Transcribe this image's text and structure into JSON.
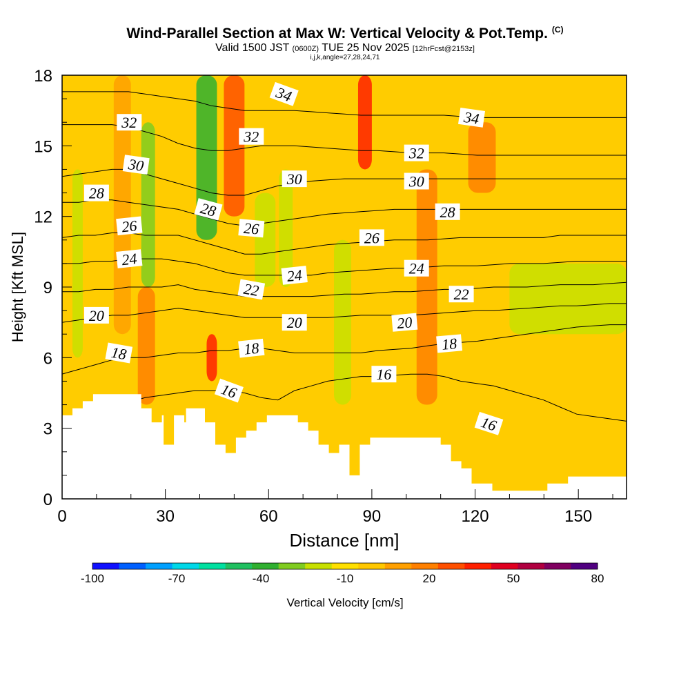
{
  "header": {
    "title": "Wind-Parallel Section at Max W: Vertical Velocity & Pot.Temp.",
    "copyright": "(C)",
    "valid_prefix": "Valid 1500 JST",
    "utc": "(0600Z)",
    "valid_date": "TUE 25 Nov 2025",
    "forecast": "[12hrFcst@2153z]",
    "indices": "i,j,k,angle=27,28,24,71"
  },
  "chart_data": {
    "type": "contour-section",
    "title": "Wind-Parallel Section at Max W: Vertical Velocity & Pot.Temp.",
    "xlabel": "Distance [nm]",
    "ylabel": "Height [Kft MSL]",
    "xlim": [
      0,
      164
    ],
    "ylim": [
      0,
      18
    ],
    "xticks": [
      "0",
      "30",
      "60",
      "90",
      "120",
      "150"
    ],
    "yticks": [
      "0",
      "3",
      "6",
      "9",
      "12",
      "15",
      "18"
    ],
    "terrain": [
      [
        0,
        3.55
      ],
      [
        3,
        3.55
      ],
      [
        3,
        3.85
      ],
      [
        6,
        3.85
      ],
      [
        6,
        4.15
      ],
      [
        9,
        4.15
      ],
      [
        9,
        4.45
      ],
      [
        12,
        4.45
      ],
      [
        12,
        4.45
      ],
      [
        18,
        4.45
      ],
      [
        18,
        4.45
      ],
      [
        23,
        4.45
      ],
      [
        23,
        3.85
      ],
      [
        26,
        3.85
      ],
      [
        26,
        3.25
      ],
      [
        29,
        3.25
      ],
      [
        29,
        3.55
      ],
      [
        29.5,
        3.55
      ],
      [
        29.5,
        2.3
      ],
      [
        32.5,
        2.3
      ],
      [
        32.5,
        3.55
      ],
      [
        35.5,
        3.55
      ],
      [
        35.5,
        3.25
      ],
      [
        36,
        3.25
      ],
      [
        36,
        3.85
      ],
      [
        41.5,
        3.85
      ],
      [
        41.5,
        3.25
      ],
      [
        44.5,
        3.25
      ],
      [
        44.5,
        2.3
      ],
      [
        47.5,
        2.3
      ],
      [
        47.5,
        1.95
      ],
      [
        50.5,
        1.95
      ],
      [
        50.5,
        2.6
      ],
      [
        53.5,
        2.6
      ],
      [
        53.5,
        2.9
      ],
      [
        56.5,
        2.9
      ],
      [
        56.5,
        3.25
      ],
      [
        59.5,
        3.25
      ],
      [
        59.5,
        3.55
      ],
      [
        68.5,
        3.55
      ],
      [
        68.5,
        3.25
      ],
      [
        71.5,
        3.25
      ],
      [
        71.5,
        2.9
      ],
      [
        74.5,
        2.9
      ],
      [
        74.5,
        2.3
      ],
      [
        77.5,
        2.3
      ],
      [
        77.5,
        1.95
      ],
      [
        83.5,
        1.95
      ],
      [
        83.5,
        1.6
      ],
      [
        80.5,
        1.6
      ],
      [
        80.5,
        2.3
      ],
      [
        83.5,
        2.3
      ],
      [
        83.5,
        1.0
      ],
      [
        86.5,
        1.0
      ],
      [
        86.5,
        2.3
      ],
      [
        89.5,
        2.3
      ],
      [
        89.5,
        2.6
      ],
      [
        110,
        2.6
      ],
      [
        110,
        2.3
      ],
      [
        113,
        2.3
      ],
      [
        113,
        1.6
      ],
      [
        116,
        1.6
      ],
      [
        116,
        1.3
      ],
      [
        119,
        1.3
      ],
      [
        119,
        0.65
      ],
      [
        125,
        0.65
      ],
      [
        125,
        0.35
      ],
      [
        141,
        0.35
      ],
      [
        141,
        0.65
      ],
      [
        147,
        0.65
      ],
      [
        147,
        0.95
      ],
      [
        164,
        0.95
      ]
    ],
    "contours": [
      {
        "label": "16",
        "level": 16,
        "heights": [
          3.3,
          3.5,
          3.8,
          4.0,
          4.1,
          4.3,
          4.4,
          4.5,
          4.6,
          4.6,
          4.6,
          4.5,
          4.3,
          4.2,
          4.6,
          4.8,
          5.0,
          5.1,
          5.2,
          5.2,
          5.25,
          5.3,
          5.3,
          5.2,
          5.0,
          4.9,
          4.8,
          4.6,
          4.4,
          4.2,
          3.9,
          3.6,
          3.5,
          3.4,
          3.3
        ]
      },
      {
        "label": "18",
        "level": 18,
        "heights": [
          5.3,
          5.5,
          5.7,
          5.9,
          6.0,
          6.0,
          6.1,
          6.2,
          6.2,
          6.3,
          6.3,
          6.4,
          6.4,
          6.3,
          6.2,
          6.2,
          6.2,
          6.2,
          6.2,
          6.3,
          6.35,
          6.4,
          6.5,
          6.6,
          6.65,
          6.7,
          6.8,
          6.9,
          7.0,
          7.1,
          7.2,
          7.3,
          7.35,
          7.4,
          7.4
        ]
      },
      {
        "label": "20",
        "level": 20,
        "heights": [
          7.5,
          7.6,
          7.7,
          7.8,
          7.8,
          7.9,
          8.0,
          8.1,
          8.0,
          7.9,
          7.8,
          7.7,
          7.7,
          7.7,
          7.7,
          7.7,
          7.7,
          7.75,
          7.8,
          7.8,
          7.8,
          7.8,
          7.85,
          7.9,
          7.95,
          8.0,
          8.0,
          8.05,
          8.1,
          8.15,
          8.2,
          8.2,
          8.25,
          8.3,
          8.3
        ]
      },
      {
        "label": "22",
        "level": 22,
        "heights": [
          8.8,
          8.8,
          8.9,
          8.9,
          9.0,
          9.0,
          9.0,
          9.1,
          8.9,
          8.8,
          8.7,
          8.6,
          8.6,
          8.6,
          8.6,
          8.6,
          8.65,
          8.7,
          8.7,
          8.75,
          8.8,
          8.8,
          8.85,
          8.9,
          8.9,
          8.95,
          9.0,
          9.0,
          9.0,
          9.05,
          9.1,
          9.1,
          9.1,
          9.15,
          9.2
        ]
      },
      {
        "label": "24",
        "level": 24,
        "heights": [
          10.0,
          10.0,
          10.1,
          10.1,
          10.2,
          10.2,
          10.2,
          10.1,
          10.0,
          9.8,
          9.6,
          9.5,
          9.5,
          9.5,
          9.5,
          9.5,
          9.6,
          9.65,
          9.7,
          9.75,
          9.8,
          9.8,
          9.85,
          9.9,
          9.9,
          9.9,
          9.95,
          10.0,
          10.0,
          10.0,
          10.05,
          10.1,
          10.1,
          10.1,
          10.1
        ]
      },
      {
        "label": "26",
        "level": 26,
        "heights": [
          11.1,
          11.2,
          11.2,
          11.3,
          11.3,
          11.2,
          11.2,
          11.2,
          11.0,
          10.8,
          10.6,
          10.4,
          10.4,
          10.5,
          10.6,
          10.7,
          10.8,
          10.85,
          10.9,
          10.95,
          11.0,
          11.0,
          11.0,
          11.05,
          11.1,
          11.1,
          11.1,
          11.1,
          11.1,
          11.1,
          11.2,
          11.2,
          11.2,
          11.2,
          11.2
        ]
      },
      {
        "label": "28",
        "level": 28,
        "heights": [
          12.6,
          12.6,
          12.7,
          12.7,
          12.6,
          12.5,
          12.4,
          12.3,
          12.1,
          11.9,
          11.7,
          11.6,
          11.7,
          11.8,
          11.9,
          12.0,
          12.1,
          12.15,
          12.2,
          12.25,
          12.3,
          12.3,
          12.3,
          12.3,
          12.3,
          12.3,
          12.3,
          12.3,
          12.3,
          12.3,
          12.3,
          12.3,
          12.3,
          12.3,
          12.3
        ]
      },
      {
        "label": "30",
        "level": 30,
        "heights": [
          13.7,
          13.8,
          13.9,
          14.0,
          14.0,
          13.8,
          13.6,
          13.4,
          13.2,
          13.0,
          12.9,
          12.9,
          13.1,
          13.3,
          13.4,
          13.5,
          13.55,
          13.6,
          13.6,
          13.6,
          13.6,
          13.6,
          13.6,
          13.6,
          13.6,
          13.6,
          13.6,
          13.6,
          13.6,
          13.6,
          13.6,
          13.6,
          13.6,
          13.6,
          13.6
        ]
      },
      {
        "label": "32",
        "level": 32,
        "heights": [
          15.9,
          15.9,
          15.9,
          15.9,
          15.8,
          15.6,
          15.4,
          15.1,
          14.9,
          14.8,
          14.8,
          14.9,
          15.0,
          15.0,
          15.0,
          14.95,
          14.9,
          14.85,
          14.8,
          14.8,
          14.75,
          14.7,
          14.7,
          14.7,
          14.65,
          14.6,
          14.6,
          14.6,
          14.6,
          14.6,
          14.6,
          14.6,
          14.6,
          14.6,
          14.6
        ]
      },
      {
        "label": "34",
        "level": 34,
        "heights": [
          17.3,
          17.3,
          17.3,
          17.3,
          17.3,
          17.2,
          17.1,
          17.0,
          16.9,
          16.7,
          16.6,
          16.5,
          16.5,
          16.5,
          16.5,
          16.45,
          16.4,
          16.35,
          16.3,
          16.3,
          16.3,
          16.3,
          16.3,
          16.3,
          16.25,
          16.2,
          16.2,
          16.2,
          16.2,
          16.2,
          16.2,
          16.2,
          16.2,
          16.2,
          16.2
        ]
      }
    ],
    "contour_labels": [
      {
        "text": "32",
        "x": 19.5,
        "y": 16.0,
        "angle": 0
      },
      {
        "text": "30",
        "x": 21.5,
        "y": 14.2,
        "angle": 8
      },
      {
        "text": "28",
        "x": 10,
        "y": 13.0,
        "angle": 0
      },
      {
        "text": "26",
        "x": 19.5,
        "y": 11.6,
        "angle": -6
      },
      {
        "text": "24",
        "x": 19.5,
        "y": 10.2,
        "angle": -6
      },
      {
        "text": "20",
        "x": 10,
        "y": 7.8,
        "angle": 0
      },
      {
        "text": "18",
        "x": 16.5,
        "y": 6.2,
        "angle": 10
      },
      {
        "text": "34",
        "x": 64.5,
        "y": 17.2,
        "angle": 20
      },
      {
        "text": "32",
        "x": 55,
        "y": 15.4,
        "angle": 0
      },
      {
        "text": "28",
        "x": 42.5,
        "y": 12.3,
        "angle": 15
      },
      {
        "text": "26",
        "x": 55,
        "y": 11.5,
        "angle": 5
      },
      {
        "text": "22",
        "x": 55,
        "y": 8.9,
        "angle": 10
      },
      {
        "text": "30",
        "x": 67.5,
        "y": 13.6,
        "angle": 0
      },
      {
        "text": "24",
        "x": 67.5,
        "y": 9.5,
        "angle": -6
      },
      {
        "text": "20",
        "x": 67.5,
        "y": 7.5,
        "angle": 0
      },
      {
        "text": "18",
        "x": 55,
        "y": 6.4,
        "angle": -6
      },
      {
        "text": "16",
        "x": 48.5,
        "y": 4.6,
        "angle": 20
      },
      {
        "text": "26",
        "x": 90,
        "y": 11.1,
        "angle": 0
      },
      {
        "text": "16",
        "x": 93.5,
        "y": 5.3,
        "angle": 0
      },
      {
        "text": "20",
        "x": 99.5,
        "y": 7.5,
        "angle": -5
      },
      {
        "text": "32",
        "x": 103,
        "y": 14.7,
        "angle": 0
      },
      {
        "text": "30",
        "x": 103,
        "y": 13.5,
        "angle": 0
      },
      {
        "text": "24",
        "x": 103,
        "y": 9.8,
        "angle": 0
      },
      {
        "text": "34",
        "x": 119,
        "y": 16.2,
        "angle": 8
      },
      {
        "text": "28",
        "x": 112,
        "y": 12.2,
        "angle": 0
      },
      {
        "text": "22",
        "x": 116,
        "y": 8.7,
        "angle": 0
      },
      {
        "text": "18",
        "x": 112.5,
        "y": 6.6,
        "angle": -5
      },
      {
        "text": "16",
        "x": 124,
        "y": 3.2,
        "angle": 18
      }
    ],
    "shading_bands": [
      {
        "x": 3,
        "w": 3,
        "y0": 6,
        "y1": 14,
        "value": -20
      },
      {
        "x": 15,
        "w": 5,
        "y0": 7,
        "y1": 18,
        "value": 10
      },
      {
        "x": 23,
        "w": 4,
        "y0": 9,
        "y1": 16,
        "value": -25
      },
      {
        "x": 22,
        "w": 5,
        "y0": 4,
        "y1": 9,
        "value": 20
      },
      {
        "x": 39,
        "w": 6,
        "y0": 11,
        "y1": 18,
        "value": -35
      },
      {
        "x": 42,
        "w": 3,
        "y0": 5,
        "y1": 7,
        "value": 40
      },
      {
        "x": 47,
        "w": 6,
        "y0": 12,
        "y1": 18,
        "value": 30
      },
      {
        "x": 56,
        "w": 6,
        "y0": 9,
        "y1": 13,
        "value": -20
      },
      {
        "x": 63,
        "w": 4,
        "y0": 9,
        "y1": 14,
        "value": -15
      },
      {
        "x": 79,
        "w": 5,
        "y0": 4,
        "y1": 11,
        "value": -15
      },
      {
        "x": 86,
        "w": 4,
        "y0": 14,
        "y1": 18,
        "value": 40
      },
      {
        "x": 103,
        "w": 6,
        "y0": 4,
        "y1": 14,
        "value": 15
      },
      {
        "x": 118,
        "w": 8,
        "y0": 13,
        "y1": 16,
        "value": 15
      },
      {
        "x": 130,
        "w": 34,
        "y0": 7,
        "y1": 10,
        "value": -15
      }
    ],
    "colorbar": {
      "label": "Vertical Velocity [cm/s]",
      "min": -100,
      "max": 80,
      "tick_labels": [
        "-100",
        "-70",
        "-40",
        "-10",
        "20",
        "50",
        "80"
      ],
      "tick_values": [
        -100,
        -70,
        -40,
        -10,
        20,
        50,
        80
      ],
      "colors": [
        "#1010ff",
        "#0060ff",
        "#00a0ff",
        "#00d8e8",
        "#00e0a0",
        "#20c060",
        "#30b030",
        "#80cc20",
        "#c8e000",
        "#ffe000",
        "#ffc800",
        "#ffa000",
        "#ff8000",
        "#ff5000",
        "#ff2000",
        "#e00020",
        "#b00040",
        "#800060",
        "#500080"
      ]
    },
    "colors": {
      "background": "#ffcc00",
      "terrain": "#ffffff",
      "contour": "#000000"
    }
  }
}
